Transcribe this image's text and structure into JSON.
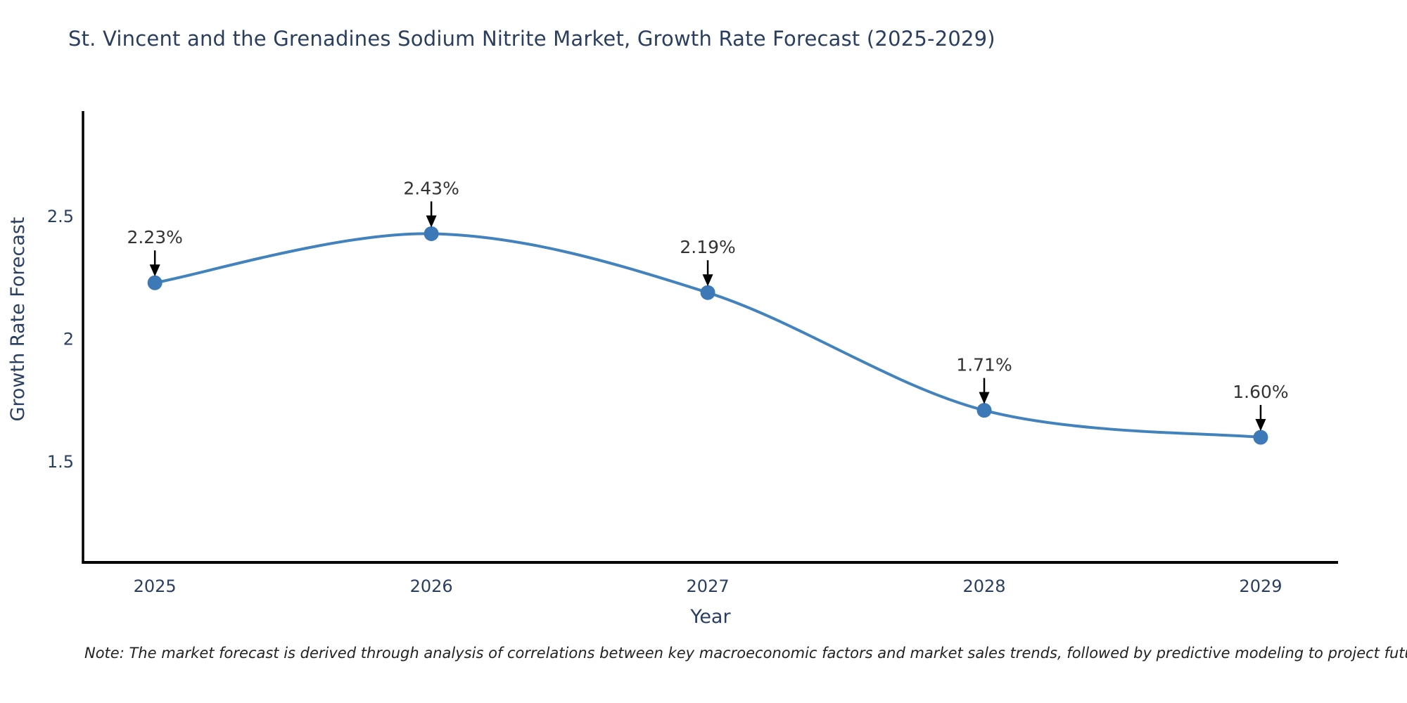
{
  "chart_data": {
    "type": "line",
    "title": "St. Vincent and the Grenadines Sodium Nitrite Market, Growth Rate Forecast (2025-2029)",
    "xlabel": "Year",
    "ylabel": "Growth Rate Forecast",
    "x": [
      2025,
      2026,
      2027,
      2028,
      2029
    ],
    "x_tick_labels": [
      "2025",
      "2026",
      "2027",
      "2028",
      "2029"
    ],
    "series": [
      {
        "name": "Growth Rate Forecast",
        "values": [
          2.23,
          2.43,
          2.19,
          1.71,
          1.6
        ],
        "point_labels": [
          "2.23%",
          "2.43%",
          "2.19%",
          "1.71%",
          "1.60%"
        ]
      }
    ],
    "yticks": [
      1.5,
      2,
      2.5
    ],
    "ytick_labels": [
      "1.5",
      "2",
      "2.5"
    ],
    "ylim": [
      1.09,
      2.93
    ],
    "xlim": [
      2024.74,
      2029.28
    ],
    "curve": "spline",
    "grid": false,
    "legend": "none",
    "annotations": "value labels with downward black arrows above each data point",
    "colors": {
      "line": "#4383bd",
      "marker": "#3d79b6",
      "axis": "#000000",
      "tick_text": "#2a3f5f",
      "title_text": "#2a3f5f",
      "annotation_text": "#333333",
      "arrow": "#000000"
    }
  },
  "footnote": "Note: The market forecast is derived through analysis of correlations between key macroeconomic factors and market sales trends, followed by predictive modeling to project future sales"
}
